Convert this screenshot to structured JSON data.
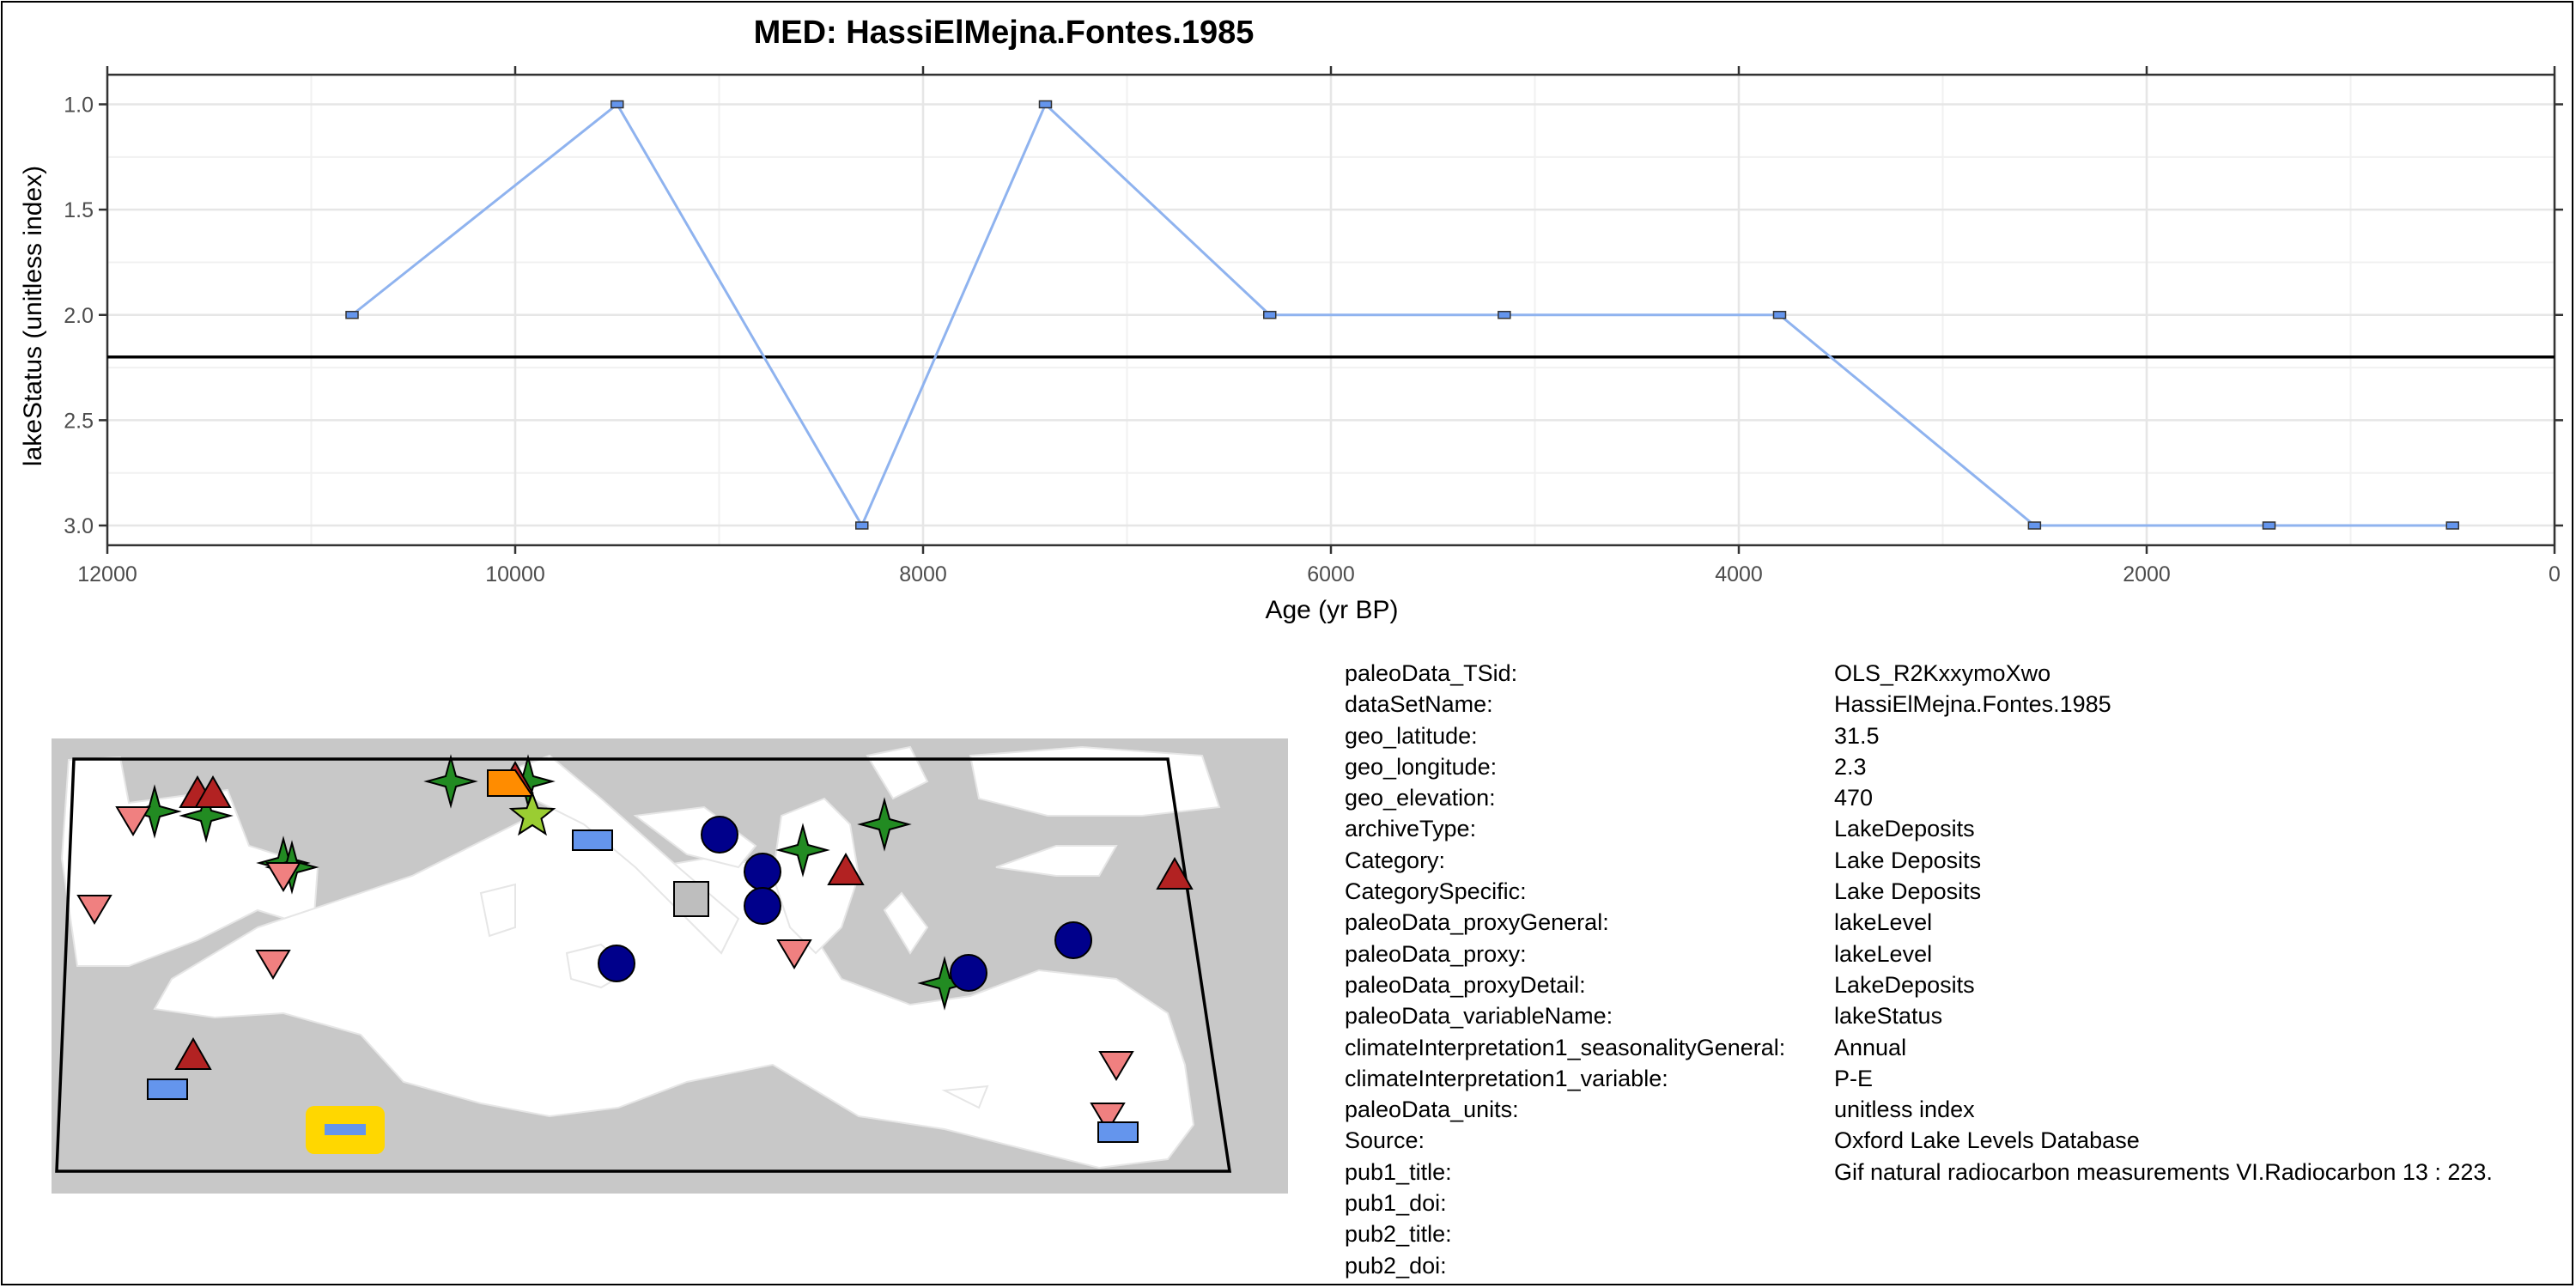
{
  "chart_data": {
    "type": "line",
    "title": "MED: HassiElMejna.Fontes.1985",
    "xlabel": "Age (yr BP)",
    "ylabel": "lakeStatus (unitless index)",
    "xlim": [
      12000,
      0
    ],
    "ylim": [
      3.0,
      1.0
    ],
    "x_reversed": true,
    "y_reversed": true,
    "xticks": [
      12000,
      10000,
      8000,
      6000,
      4000,
      2000,
      0
    ],
    "yticks": [
      1.0,
      1.5,
      2.0,
      2.5,
      3.0
    ],
    "ytick_labels": [
      "1.0",
      "1.5",
      "2.0",
      "2.5",
      "3.0"
    ],
    "xtick_labels": [
      "12000",
      "10000",
      "8000",
      "6000",
      "4000",
      "2000",
      "0"
    ],
    "grid": true,
    "reference_line_y": 2.2,
    "series": [
      {
        "name": "lakeStatus",
        "color": "#8fb3ef",
        "x": [
          10800,
          9500,
          8300,
          7400,
          6300,
          5150,
          3800,
          2550,
          1400,
          500
        ],
        "y": [
          2,
          1,
          3,
          1,
          2,
          2,
          2,
          3,
          3,
          3
        ]
      }
    ]
  },
  "map": {
    "land_color": "#c8c8c8",
    "sea_color": "#ffffff",
    "highlight_color": "#ffd700",
    "site_marker_color": "#6495ed",
    "markers": [
      {
        "shape": "star4",
        "color": "#228b22"
      },
      {
        "shape": "star4",
        "color": "#228b22"
      },
      {
        "shape": "star4",
        "color": "#228b22"
      },
      {
        "shape": "star4",
        "color": "#228b22"
      },
      {
        "shape": "star4",
        "color": "#228b22"
      },
      {
        "shape": "star4",
        "color": "#228b22"
      },
      {
        "shape": "star4",
        "color": "#228b22"
      },
      {
        "shape": "star4",
        "color": "#228b22"
      },
      {
        "shape": "star4",
        "color": "#228b22"
      },
      {
        "shape": "tri-up",
        "color": "#b22222"
      },
      {
        "shape": "tri-up",
        "color": "#b22222"
      },
      {
        "shape": "tri-up",
        "color": "#b22222"
      },
      {
        "shape": "tri-up",
        "color": "#b22222"
      },
      {
        "shape": "tri-up",
        "color": "#b22222"
      },
      {
        "shape": "tri-up",
        "color": "#b22222"
      },
      {
        "shape": "tri-down",
        "color": "#f08080"
      },
      {
        "shape": "tri-down",
        "color": "#f08080"
      },
      {
        "shape": "tri-down",
        "color": "#f08080"
      },
      {
        "shape": "tri-down",
        "color": "#f08080"
      },
      {
        "shape": "tri-down",
        "color": "#f08080"
      },
      {
        "shape": "tri-down",
        "color": "#f08080"
      },
      {
        "shape": "tri-down",
        "color": "#f08080"
      },
      {
        "shape": "circle",
        "color": "#00008b"
      },
      {
        "shape": "circle",
        "color": "#00008b"
      },
      {
        "shape": "circle",
        "color": "#00008b"
      },
      {
        "shape": "circle",
        "color": "#00008b"
      },
      {
        "shape": "circle",
        "color": "#00008b"
      },
      {
        "shape": "circle",
        "color": "#00008b"
      },
      {
        "shape": "rect",
        "color": "#6495ed"
      },
      {
        "shape": "rect",
        "color": "#6495ed"
      },
      {
        "shape": "rect",
        "color": "#6495ed"
      },
      {
        "shape": "square",
        "color": "#bebebe"
      },
      {
        "shape": "flag",
        "color": "#ff8c00"
      },
      {
        "shape": "star5",
        "color": "#9acd32"
      }
    ]
  },
  "metadata": [
    {
      "key": "paleoData_TSid:",
      "value": "OLS_R2KxxymoXwo"
    },
    {
      "key": "dataSetName:",
      "value": "HassiElMejna.Fontes.1985"
    },
    {
      "key": "geo_latitude:",
      "value": "31.5"
    },
    {
      "key": "geo_longitude:",
      "value": "2.3"
    },
    {
      "key": "geo_elevation:",
      "value": "470"
    },
    {
      "key": "archiveType:",
      "value": "LakeDeposits"
    },
    {
      "key": "Category:",
      "value": "Lake Deposits"
    },
    {
      "key": "CategorySpecific:",
      "value": "Lake Deposits"
    },
    {
      "key": "paleoData_proxyGeneral:",
      "value": "lakeLevel"
    },
    {
      "key": "paleoData_proxy:",
      "value": "lakeLevel"
    },
    {
      "key": "paleoData_proxyDetail:",
      "value": "LakeDeposits"
    },
    {
      "key": "paleoData_variableName:",
      "value": "lakeStatus"
    },
    {
      "key": "climateInterpretation1_seasonalityGeneral:",
      "value": "Annual"
    },
    {
      "key": "climateInterpretation1_variable:",
      "value": "P-E"
    },
    {
      "key": "paleoData_units:",
      "value": "unitless index"
    },
    {
      "key": "Source:",
      "value": "Oxford Lake Levels Database"
    },
    {
      "key": "pub1_title:",
      "value": "Gif natural radiocarbon measurements VI.Radiocarbon 13 : 223."
    },
    {
      "key": "pub1_doi:",
      "value": ""
    },
    {
      "key": "pub2_title:",
      "value": ""
    },
    {
      "key": "pub2_doi:",
      "value": ""
    }
  ]
}
